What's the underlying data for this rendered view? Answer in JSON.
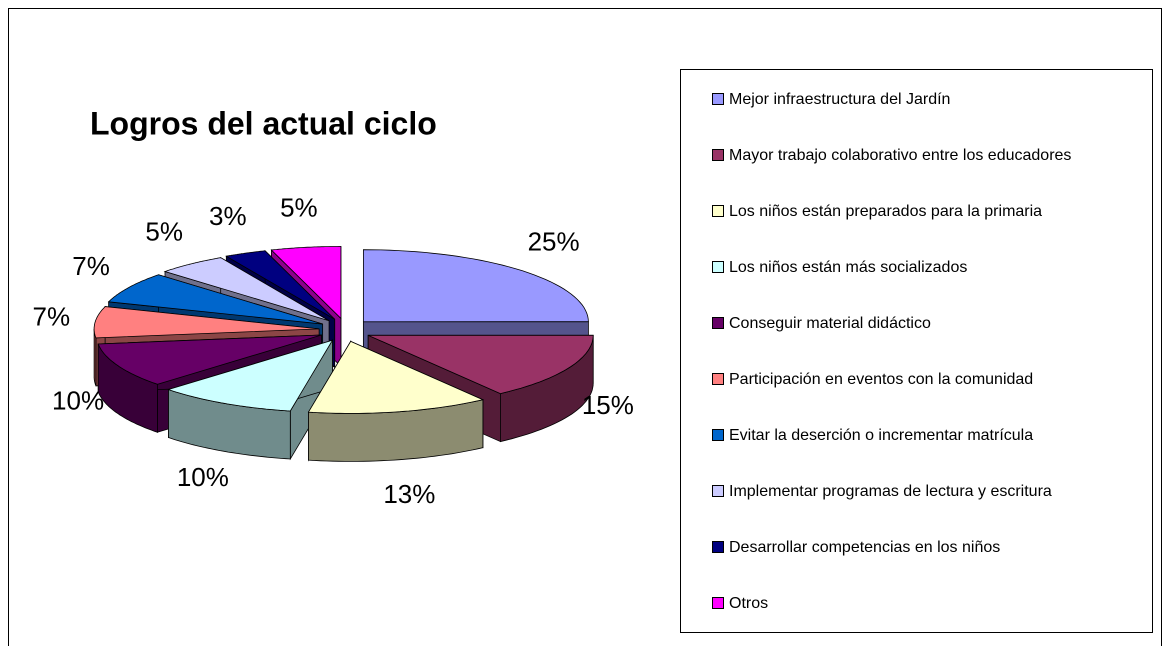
{
  "chart_data": {
    "type": "pie3d",
    "title": "Logros del actual ciclo",
    "categories": [
      "Mejor infraestructura del Jardín",
      "Mayor trabajo colaborativo entre los educadores",
      "Los niños están preparados para la primaria",
      "Los niños están más socializados",
      "Conseguir material didáctico",
      "Participación en eventos con la comunidad",
      "Evitar la deserción o incrementar matrícula",
      "Implementar programas de lectura y escritura",
      "Desarrollar competencias en los niños",
      "Otros"
    ],
    "values": [
      25,
      15,
      13,
      10,
      10,
      7,
      7,
      5,
      3,
      5
    ],
    "value_labels": [
      "25%",
      "15%",
      "13%",
      "10%",
      "10%",
      "7%",
      "7%",
      "5%",
      "3%",
      "5%"
    ],
    "colors": [
      "#9999ff",
      "#993366",
      "#ffffcc",
      "#ccffff",
      "#660066",
      "#ff8080",
      "#0066cc",
      "#ccccff",
      "#000080",
      "#ff00ff"
    ],
    "legend": "right"
  }
}
